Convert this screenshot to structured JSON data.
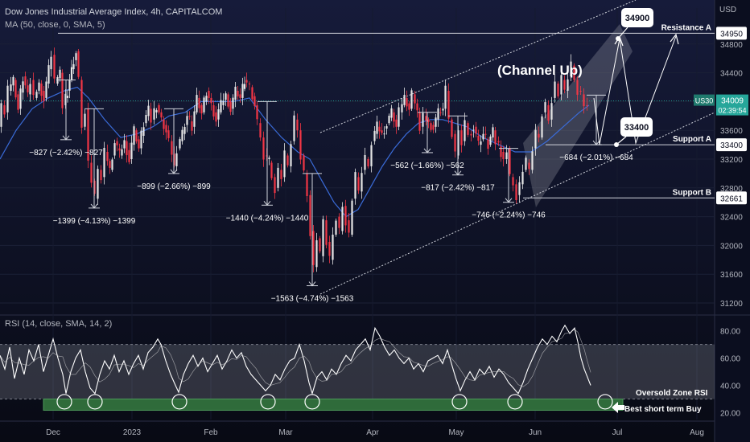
{
  "header": {
    "title": "Dow Jones Industrial Average Index, 4h, CAPITALCOM",
    "ma_label": "MA (50, close, 0, SMA, 5)",
    "currency": "USD"
  },
  "chart_data": {
    "type": "candlestick",
    "symbol": "US30",
    "last_price": "34009",
    "countdown": "02:39:54",
    "price_axis_ticks": [
      "34800",
      "34400",
      "34000",
      "33600",
      "33200",
      "32800",
      "32400",
      "32000",
      "31600",
      "31200"
    ],
    "ylim": [
      31100,
      35300
    ],
    "x_axis_labels": [
      "Dec",
      "2023",
      "Feb",
      "Mar",
      "Apr",
      "May",
      "Jun",
      "Jul",
      "Aug"
    ],
    "price_path": [
      [
        0,
        33650
      ],
      [
        4,
        33950
      ],
      [
        8,
        33850
      ],
      [
        12,
        34150
      ],
      [
        18,
        34300
      ],
      [
        24,
        33900
      ],
      [
        30,
        34350
      ],
      [
        36,
        34100
      ],
      [
        40,
        34300
      ],
      [
        44,
        34050
      ],
      [
        50,
        34250
      ],
      [
        56,
        34050
      ],
      [
        62,
        34450
      ],
      [
        66,
        34650
      ],
      [
        70,
        34250
      ],
      [
        76,
        34400
      ],
      [
        80,
        33950
      ],
      [
        85,
        34150
      ],
      [
        90,
        34450
      ],
      [
        96,
        34700
      ],
      [
        100,
        34300
      ],
      [
        104,
        33650
      ],
      [
        108,
        33900
      ],
      [
        112,
        33150
      ],
      [
        116,
        32900
      ],
      [
        120,
        32650
      ],
      [
        124,
        33050
      ],
      [
        128,
        32950
      ],
      [
        132,
        33300
      ],
      [
        138,
        33050
      ],
      [
        144,
        33450
      ],
      [
        150,
        33250
      ],
      [
        156,
        33450
      ],
      [
        162,
        33200
      ],
      [
        168,
        33600
      ],
      [
        174,
        33350
      ],
      [
        180,
        33700
      ],
      [
        186,
        33900
      ],
      [
        190,
        33750
      ],
      [
        196,
        33950
      ],
      [
        202,
        33750
      ],
      [
        208,
        33600
      ],
      [
        212,
        33450
      ],
      [
        218,
        33100
      ],
      [
        222,
        33350
      ],
      [
        228,
        33550
      ],
      [
        234,
        33800
      ],
      [
        240,
        33650
      ],
      [
        246,
        34050
      ],
      [
        252,
        33850
      ],
      [
        258,
        34150
      ],
      [
        264,
        33950
      ],
      [
        270,
        33750
      ],
      [
        276,
        33950
      ],
      [
        282,
        34100
      ],
      [
        288,
        33900
      ],
      [
        294,
        34150
      ],
      [
        300,
        34050
      ],
      [
        305,
        34300
      ],
      [
        312,
        34200
      ],
      [
        318,
        33950
      ],
      [
        322,
        33700
      ],
      [
        326,
        33500
      ],
      [
        330,
        33250
      ],
      [
        336,
        33150
      ],
      [
        340,
        32950
      ],
      [
        344,
        32800
      ],
      [
        348,
        33050
      ],
      [
        352,
        32950
      ],
      [
        356,
        33250
      ],
      [
        360,
        33100
      ],
      [
        364,
        33450
      ],
      [
        368,
        33750
      ],
      [
        372,
        33600
      ],
      [
        376,
        33250
      ],
      [
        380,
        33000
      ],
      [
        384,
        32700
      ],
      [
        388,
        32200
      ],
      [
        392,
        31700
      ],
      [
        396,
        32100
      ],
      [
        400,
        31850
      ],
      [
        404,
        32350
      ],
      [
        408,
        32050
      ],
      [
        412,
        31800
      ],
      [
        416,
        32150
      ],
      [
        420,
        32400
      ],
      [
        424,
        32200
      ],
      [
        428,
        32550
      ],
      [
        432,
        32350
      ],
      [
        436,
        32150
      ],
      [
        440,
        32650
      ],
      [
        444,
        32950
      ],
      [
        448,
        32750
      ],
      [
        452,
        33050
      ],
      [
        456,
        33200
      ],
      [
        460,
        33100
      ],
      [
        464,
        33450
      ],
      [
        470,
        33650
      ],
      [
        476,
        33550
      ],
      [
        482,
        33700
      ],
      [
        488,
        33850
      ],
      [
        494,
        33650
      ],
      [
        498,
        33850
      ],
      [
        504,
        34050
      ],
      [
        510,
        33900
      ],
      [
        514,
        34100
      ],
      [
        520,
        33850
      ],
      [
        524,
        33650
      ],
      [
        528,
        33800
      ],
      [
        534,
        33700
      ],
      [
        540,
        33650
      ],
      [
        546,
        33850
      ],
      [
        552,
        33900
      ],
      [
        556,
        34150
      ],
      [
        560,
        33750
      ],
      [
        564,
        33550
      ],
      [
        568,
        33250
      ],
      [
        572,
        33600
      ],
      [
        576,
        33450
      ],
      [
        580,
        33700
      ],
      [
        584,
        33550
      ],
      [
        590,
        33650
      ],
      [
        596,
        33400
      ],
      [
        602,
        33550
      ],
      [
        608,
        33400
      ],
      [
        614,
        33600
      ],
      [
        618,
        33450
      ],
      [
        624,
        33300
      ],
      [
        628,
        33200
      ],
      [
        632,
        33350
      ],
      [
        636,
        32950
      ],
      [
        640,
        32850
      ],
      [
        644,
        32700
      ],
      [
        648,
        32850
      ],
      [
        652,
        33050
      ],
      [
        656,
        33150
      ],
      [
        660,
        33050
      ],
      [
        664,
        33350
      ],
      [
        668,
        33550
      ],
      [
        672,
        33500
      ],
      [
        676,
        33850
      ],
      [
        680,
        33950
      ],
      [
        684,
        33750
      ],
      [
        688,
        34050
      ],
      [
        692,
        34250
      ],
      [
        696,
        34100
      ],
      [
        700,
        34300
      ],
      [
        704,
        34150
      ],
      [
        708,
        34350
      ],
      [
        712,
        34500
      ],
      [
        716,
        34300
      ],
      [
        720,
        34150
      ],
      [
        724,
        34100
      ],
      [
        728,
        33950
      ],
      [
        732,
        34009
      ]
    ],
    "ma_path": [
      [
        0,
        33200
      ],
      [
        20,
        33600
      ],
      [
        40,
        33900
      ],
      [
        60,
        34050
      ],
      [
        80,
        34150
      ],
      [
        96,
        34200
      ],
      [
        110,
        34050
      ],
      [
        130,
        33750
      ],
      [
        150,
        33500
      ],
      [
        170,
        33550
      ],
      [
        190,
        33650
      ],
      [
        210,
        33800
      ],
      [
        230,
        33850
      ],
      [
        250,
        34000
      ],
      [
        270,
        34000
      ],
      [
        290,
        34000
      ],
      [
        310,
        34050
      ],
      [
        330,
        33750
      ],
      [
        350,
        33500
      ],
      [
        370,
        33300
      ],
      [
        385,
        33200
      ],
      [
        400,
        32900
      ],
      [
        415,
        32600
      ],
      [
        430,
        32400
      ],
      [
        445,
        32500
      ],
      [
        460,
        32800
      ],
      [
        475,
        33100
      ],
      [
        490,
        33350
      ],
      [
        505,
        33550
      ],
      [
        520,
        33700
      ],
      [
        535,
        33750
      ],
      [
        550,
        33750
      ],
      [
        565,
        33700
      ],
      [
        580,
        33650
      ],
      [
        600,
        33500
      ],
      [
        620,
        33400
      ],
      [
        640,
        33300
      ],
      [
        660,
        33300
      ],
      [
        680,
        33450
      ],
      [
        700,
        33650
      ],
      [
        720,
        33850
      ],
      [
        732,
        33950
      ]
    ],
    "levels": [
      {
        "name": "Resistance A",
        "value": "34950",
        "price": 34950,
        "x_start": 72
      },
      {
        "name": "Support A",
        "value": "33400",
        "price": 33400,
        "x_start": 678
      },
      {
        "name": "Support B",
        "value": "32661",
        "price": 32661,
        "x_start": 650
      }
    ],
    "measurements": [
      {
        "label": "−827 (−2.42%) −827",
        "x": 82,
        "top": 34300,
        "bottom": 33470
      },
      {
        "label": "−1399 (−4.13%) −1399",
        "x": 117,
        "top": 33900,
        "bottom": 32520
      },
      {
        "label": "−899 (−2.66%) −899",
        "x": 216,
        "top": 33900,
        "bottom": 33000
      },
      {
        "label": "−1440 (−4.24%) −1440",
        "x": 332,
        "top": 34000,
        "bottom": 32560
      },
      {
        "label": "−1563 (−4.74%) −1563",
        "x": 388,
        "top": 33000,
        "bottom": 31440
      },
      {
        "label": "−562 (−1.66%) −562",
        "x": 531,
        "top": 33850,
        "bottom": 33290
      },
      {
        "label": "−817 (−2.42%) −817",
        "x": 569,
        "top": 33800,
        "bottom": 32980
      },
      {
        "label": "−746 (−2.24%) −746",
        "x": 632,
        "top": 33350,
        "bottom": 32600
      },
      {
        "label": "−684 (−2.01%) −684",
        "x": 741,
        "top": 34090,
        "bottom": 33400
      }
    ],
    "channel_label": "(Channel Up)",
    "callouts": [
      {
        "label": "34900"
      },
      {
        "label": "33400"
      }
    ],
    "rsi": {
      "label": "RSI (14, close, SMA, 14, 2)",
      "ticks": [
        "80.00",
        "60.00",
        "40.00",
        "20.00"
      ],
      "ylim": [
        15,
        88
      ],
      "band": [
        30,
        70
      ],
      "oversold_label": "Oversold Zone RSI",
      "buy_label": "Best short term Buy",
      "values": [
        [
          0,
          62
        ],
        [
          6,
          52
        ],
        [
          12,
          68
        ],
        [
          18,
          45
        ],
        [
          24,
          60
        ],
        [
          30,
          48
        ],
        [
          36,
          66
        ],
        [
          42,
          58
        ],
        [
          48,
          70
        ],
        [
          54,
          50
        ],
        [
          60,
          62
        ],
        [
          66,
          74
        ],
        [
          72,
          60
        ],
        [
          78,
          48
        ],
        [
          82,
          34
        ],
        [
          88,
          50
        ],
        [
          94,
          60
        ],
        [
          100,
          66
        ],
        [
          106,
          50
        ],
        [
          112,
          38
        ],
        [
          118,
          34
        ],
        [
          124,
          48
        ],
        [
          130,
          58
        ],
        [
          136,
          52
        ],
        [
          142,
          62
        ],
        [
          148,
          50
        ],
        [
          154,
          58
        ],
        [
          160,
          48
        ],
        [
          166,
          56
        ],
        [
          172,
          62
        ],
        [
          178,
          52
        ],
        [
          184,
          64
        ],
        [
          190,
          68
        ],
        [
          196,
          74
        ],
        [
          200,
          70
        ],
        [
          206,
          58
        ],
        [
          212,
          48
        ],
        [
          218,
          40
        ],
        [
          222,
          35
        ],
        [
          228,
          48
        ],
        [
          234,
          56
        ],
        [
          240,
          62
        ],
        [
          246,
          54
        ],
        [
          252,
          60
        ],
        [
          258,
          50
        ],
        [
          264,
          56
        ],
        [
          270,
          62
        ],
        [
          276,
          52
        ],
        [
          282,
          58
        ],
        [
          288,
          66
        ],
        [
          294,
          60
        ],
        [
          300,
          64
        ],
        [
          306,
          54
        ],
        [
          312,
          48
        ],
        [
          318,
          44
        ],
        [
          324,
          40
        ],
        [
          330,
          36
        ],
        [
          336,
          40
        ],
        [
          342,
          48
        ],
        [
          348,
          44
        ],
        [
          354,
          52
        ],
        [
          360,
          58
        ],
        [
          366,
          60
        ],
        [
          372,
          70
        ],
        [
          378,
          58
        ],
        [
          384,
          42
        ],
        [
          388,
          34
        ],
        [
          394,
          46
        ],
        [
          400,
          50
        ],
        [
          406,
          44
        ],
        [
          412,
          52
        ],
        [
          418,
          48
        ],
        [
          424,
          56
        ],
        [
          430,
          62
        ],
        [
          436,
          58
        ],
        [
          442,
          66
        ],
        [
          448,
          70
        ],
        [
          454,
          74
        ],
        [
          460,
          66
        ],
        [
          466,
          82
        ],
        [
          472,
          76
        ],
        [
          478,
          68
        ],
        [
          484,
          62
        ],
        [
          490,
          66
        ],
        [
          496,
          60
        ],
        [
          502,
          56
        ],
        [
          508,
          60
        ],
        [
          514,
          52
        ],
        [
          520,
          56
        ],
        [
          526,
          50
        ],
        [
          532,
          58
        ],
        [
          538,
          60
        ],
        [
          544,
          62
        ],
        [
          550,
          56
        ],
        [
          556,
          66
        ],
        [
          560,
          58
        ],
        [
          566,
          46
        ],
        [
          572,
          36
        ],
        [
          578,
          44
        ],
        [
          584,
          50
        ],
        [
          590,
          44
        ],
        [
          596,
          52
        ],
        [
          602,
          48
        ],
        [
          608,
          54
        ],
        [
          614,
          46
        ],
        [
          620,
          52
        ],
        [
          626,
          48
        ],
        [
          632,
          42
        ],
        [
          638,
          38
        ],
        [
          644,
          34
        ],
        [
          650,
          42
        ],
        [
          656,
          52
        ],
        [
          662,
          60
        ],
        [
          668,
          68
        ],
        [
          674,
          74
        ],
        [
          680,
          70
        ],
        [
          686,
          76
        ],
        [
          692,
          72
        ],
        [
          698,
          80
        ],
        [
          702,
          84
        ],
        [
          708,
          78
        ],
        [
          714,
          82
        ],
        [
          718,
          72
        ],
        [
          722,
          60
        ],
        [
          726,
          52
        ],
        [
          730,
          46
        ],
        [
          734,
          40
        ]
      ],
      "circles_x": [
        80,
        118,
        223,
        333,
        388,
        571,
        640,
        752
      ]
    }
  }
}
